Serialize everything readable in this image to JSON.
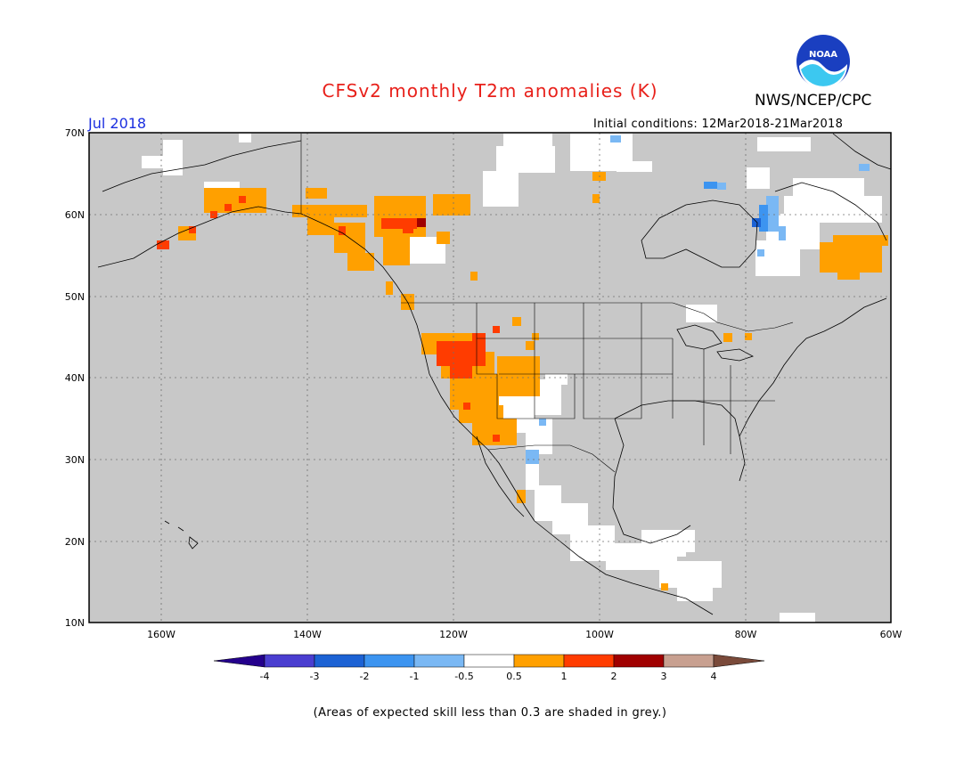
{
  "title": "CFSv2 monthly T2m anomalies (K)",
  "agency": "NWS/NCEP/CPC",
  "logo_text": "NOAA",
  "month": "Jul 2018",
  "initial_conditions": "Initial conditions: 12Mar2018-21Mar2018",
  "note": "(Areas of expected skill less than 0.3 are shaded in grey.)",
  "map": {
    "lon_range": [
      -171,
      -60
    ],
    "lat_range": [
      10,
      70
    ],
    "lat_labels": [
      "70N",
      "60N",
      "50N",
      "40N",
      "30N",
      "20N",
      "10N"
    ],
    "lon_labels": [
      "160W",
      "140W",
      "120W",
      "100W",
      "80W",
      "60W"
    ],
    "background_color": "#c8c8c8",
    "regions": [
      {
        "name": "alaska-southwest",
        "category": "1..2",
        "lon": -160,
        "lat": 56.5
      },
      {
        "name": "alaska-south-coast",
        "category": "0.5..1",
        "lon": -150,
        "lat": 61.5
      },
      {
        "name": "yukon-bc",
        "category": "0.5..1",
        "lon": -128,
        "lat": 58.5
      },
      {
        "name": "yukon-bc-warm-core",
        "category": "2..3",
        "lon": -125,
        "lat": 59.5
      },
      {
        "name": "great-basin",
        "category": "1..2",
        "lon": -118.5,
        "lat": 42
      },
      {
        "name": "southwest-us",
        "category": "0.5..1",
        "lon": -115,
        "lat": 37
      },
      {
        "name": "quebec-labrador",
        "category": "0.5..1",
        "lon": -66,
        "lat": 55.5
      },
      {
        "name": "hudson-bay-east",
        "category": "-3..-2",
        "lon": -79,
        "lat": 58.5
      },
      {
        "name": "new-mexico",
        "category": "-0.5..0.5",
        "lon": -108,
        "lat": 36
      },
      {
        "name": "mexico-south",
        "category": "-0.5..0.5",
        "lon": -100,
        "lat": 18
      }
    ]
  },
  "colorbar": {
    "labels": [
      "-4",
      "-3",
      "-2",
      "-1",
      "-0.5",
      "0.5",
      "1",
      "2",
      "3",
      "4"
    ],
    "colors": [
      "#24008c",
      "#4a3ed0",
      "#1c62d4",
      "#3c94f0",
      "#7ab8f4",
      "#ffffff",
      "#ffa000",
      "#ff3c00",
      "#a00000",
      "#c8a090",
      "#7a4a3a"
    ]
  }
}
